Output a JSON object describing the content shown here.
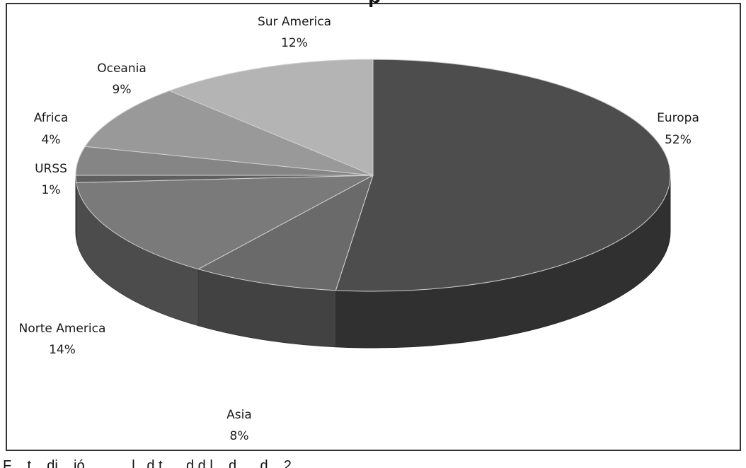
{
  "chart_data": {
    "type": "pie",
    "style": "3d",
    "title": "",
    "slices": [
      {
        "label": "Europa",
        "percent": "52%",
        "value": 52,
        "color": "#4d4d4d"
      },
      {
        "label": "Asia",
        "percent": "8%",
        "value": 8,
        "color": "#6a6a6a"
      },
      {
        "label": "Norte America",
        "percent": "14%",
        "value": 14,
        "color": "#7a7a7a"
      },
      {
        "label": "URSS",
        "percent": "1%",
        "value": 1,
        "color": "#5f5f5f"
      },
      {
        "label": "Africa",
        "percent": "4%",
        "value": 4,
        "color": "#858585"
      },
      {
        "label": "Oceania",
        "percent": "9%",
        "value": 9,
        "color": "#999999"
      },
      {
        "label": "Sur America",
        "percent": "12%",
        "value": 12,
        "color": "#b4b4b4"
      }
    ]
  },
  "cutoff_title_fragment": "p    ",
  "cutoff_footer_fragment": "F    t    di    ió            l   d t      d d l    d      d    2"
}
